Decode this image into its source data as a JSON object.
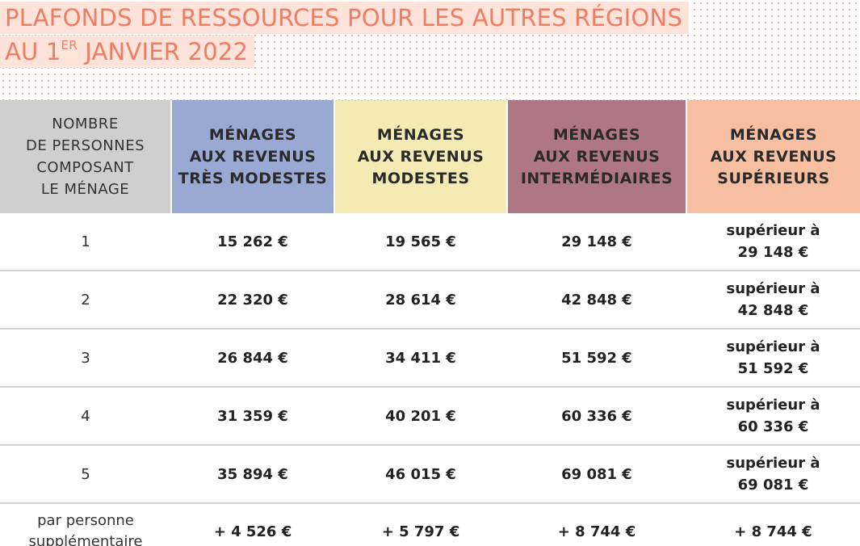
{
  "title": {
    "line1": "PLAFONDS DE RESSOURCES POUR LES AUTRES RÉGIONS",
    "line2_prefix": "AU 1",
    "line2_sup": "ER",
    "line2_suffix": " JANVIER 2022"
  },
  "colors": {
    "title_text": "#ef7d63",
    "title_background": "#fde3da",
    "dot_pattern": "#f2a898",
    "header_personnes": "#cfcfcf",
    "header_tres_modestes": "#9aa8d4",
    "header_modestes": "#f3ebb3",
    "header_intermediaires": "#af7785",
    "header_superieurs": "#f7bfa2"
  },
  "headers": {
    "personnes": [
      "NOMBRE",
      "DE PERSONNES",
      "COMPOSANT",
      "LE MÉNAGE"
    ],
    "tres_modestes": [
      "MÉNAGES",
      "AUX REVENUS",
      "TRÈS MODESTES"
    ],
    "modestes": [
      "MÉNAGES",
      "AUX REVENUS",
      "MODESTES"
    ],
    "intermediaires": [
      "MÉNAGES",
      "AUX REVENUS",
      "INTERMÉDIAIRES"
    ],
    "superieurs": [
      "MÉNAGES",
      "AUX REVENUS",
      "SUPÉRIEURS"
    ]
  },
  "rows": [
    {
      "personnes": "1",
      "tres_modestes": "15 262 €",
      "modestes": "19 565 €",
      "intermediaires": "29 148 €",
      "superieurs_label": "supérieur à",
      "superieurs_value": "29 148 €"
    },
    {
      "personnes": "2",
      "tres_modestes": "22 320 €",
      "modestes": "28 614 €",
      "intermediaires": "42 848 €",
      "superieurs_label": "supérieur à",
      "superieurs_value": "42 848 €"
    },
    {
      "personnes": "3",
      "tres_modestes": "26 844 €",
      "modestes": "34 411 €",
      "intermediaires": "51 592 €",
      "superieurs_label": "supérieur à",
      "superieurs_value": "51 592 €"
    },
    {
      "personnes": "4",
      "tres_modestes": "31 359 €",
      "modestes": "40 201 €",
      "intermediaires": "60 336 €",
      "superieurs_label": "supérieur à",
      "superieurs_value": "60 336 €"
    },
    {
      "personnes": "5",
      "tres_modestes": "35 894 €",
      "modestes": "46 015 €",
      "intermediaires": "69 081 €",
      "superieurs_label": "supérieur à",
      "superieurs_value": "69 081 €"
    }
  ],
  "extra_row": {
    "personnes": [
      "par personne",
      "supplémentaire"
    ],
    "tres_modestes": "+ 4 526 €",
    "modestes": "+ 5 797 €",
    "intermediaires": "+ 8 744 €",
    "superieurs": "+ 8 744 €"
  }
}
